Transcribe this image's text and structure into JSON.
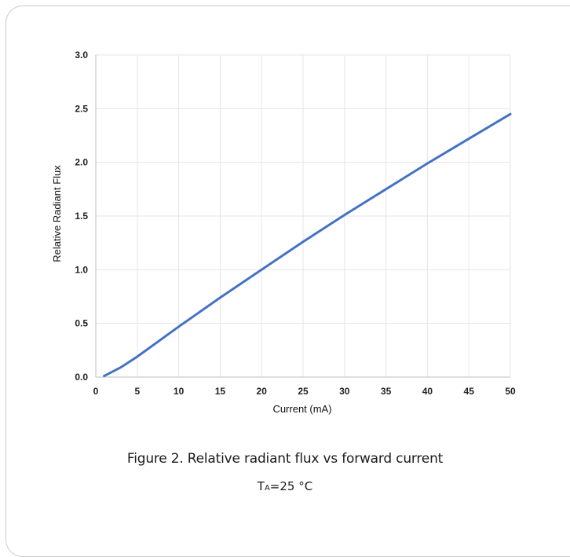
{
  "caption": {
    "title": "Figure 2. Relative radiant flux vs forward current",
    "condition_prefix": "T",
    "condition_sub": "A",
    "condition_rest": "=25 °C"
  },
  "chart_data": {
    "type": "line",
    "xlabel": "Current (mA)",
    "ylabel": "Relative Radiant Flux",
    "xlim": [
      0,
      50
    ],
    "ylim": [
      0,
      3.0
    ],
    "x_ticks": [
      "0",
      "5",
      "10",
      "15",
      "20",
      "25",
      "30",
      "35",
      "40",
      "45",
      "50"
    ],
    "y_ticks": [
      "0.0",
      "0.5",
      "1.0",
      "1.5",
      "2.0",
      "2.5",
      "3.0"
    ],
    "grid": true,
    "series": [
      {
        "color": "#4472c4",
        "x": [
          1,
          2,
          3,
          5,
          10,
          15,
          20,
          25,
          30,
          35,
          40,
          45,
          50
        ],
        "y": [
          0.01,
          0.05,
          0.09,
          0.19,
          0.47,
          0.74,
          1.0,
          1.26,
          1.51,
          1.75,
          1.99,
          2.22,
          2.45
        ]
      }
    ]
  }
}
